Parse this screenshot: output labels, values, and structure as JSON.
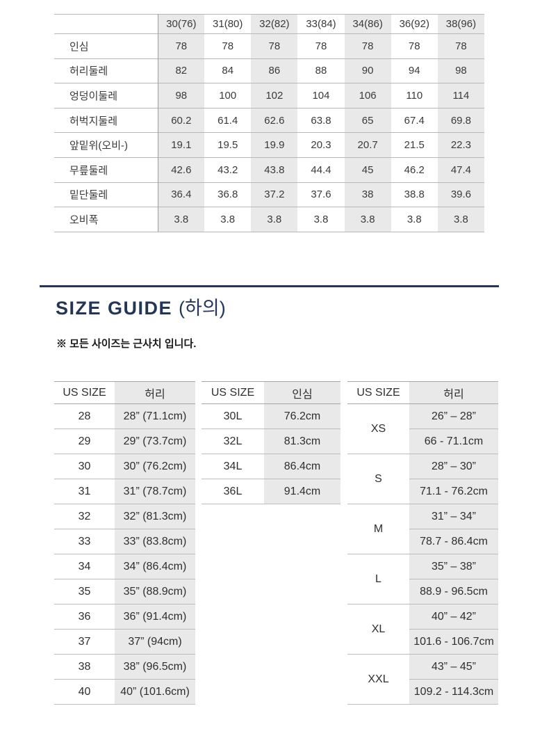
{
  "colors": {
    "accent_navy": "#233655",
    "cell_gray": "#e9e9e9"
  },
  "section": {
    "title_en": "SIZE GUIDE",
    "title_kr": "(하의)",
    "note": "※ 모든 사이즈는 근사치 입니다."
  },
  "spec_table": {
    "columns": [
      "30(76)",
      "31(80)",
      "32(82)",
      "33(84)",
      "34(86)",
      "36(92)",
      "38(96)"
    ],
    "rows": [
      {
        "label": "인심",
        "values": [
          "78",
          "78",
          "78",
          "78",
          "78",
          "78",
          "78"
        ]
      },
      {
        "label": "허리둘레",
        "values": [
          "82",
          "84",
          "86",
          "88",
          "90",
          "94",
          "98"
        ]
      },
      {
        "label": "엉덩이둘레",
        "values": [
          "98",
          "100",
          "102",
          "104",
          "106",
          "110",
          "114"
        ]
      },
      {
        "label": "허벅지둘레",
        "values": [
          "60.2",
          "61.4",
          "62.6",
          "63.8",
          "65",
          "67.4",
          "69.8"
        ]
      },
      {
        "label": "앞밑위(오비-)",
        "values": [
          "19.1",
          "19.5",
          "19.9",
          "20.3",
          "20.7",
          "21.5",
          "22.3"
        ]
      },
      {
        "label": "무릎둘레",
        "values": [
          "42.6",
          "43.2",
          "43.8",
          "44.4",
          "45",
          "46.2",
          "47.4"
        ]
      },
      {
        "label": "밑단둘레",
        "values": [
          "36.4",
          "36.8",
          "37.2",
          "37.6",
          "38",
          "38.8",
          "39.6"
        ]
      },
      {
        "label": "오비폭",
        "values": [
          "3.8",
          "3.8",
          "3.8",
          "3.8",
          "3.8",
          "3.8",
          "3.8"
        ]
      }
    ]
  },
  "waist_table": {
    "headers": [
      "US SIZE",
      "허리"
    ],
    "rows": [
      [
        "28",
        "28” (71.1cm)"
      ],
      [
        "29",
        "29” (73.7cm)"
      ],
      [
        "30",
        "30” (76.2cm)"
      ],
      [
        "31",
        "31” (78.7cm)"
      ],
      [
        "32",
        "32” (81.3cm)"
      ],
      [
        "33",
        "33” (83.8cm)"
      ],
      [
        "34",
        "34” (86.4cm)"
      ],
      [
        "35",
        "35” (88.9cm)"
      ],
      [
        "36",
        "36” (91.4cm)"
      ],
      [
        "37",
        "37” (94cm)"
      ],
      [
        "38",
        "38” (96.5cm)"
      ],
      [
        "40",
        "40” (101.6cm)"
      ]
    ]
  },
  "inseam_table": {
    "headers": [
      "US SIZE",
      "인심"
    ],
    "rows": [
      [
        "30L",
        "76.2cm"
      ],
      [
        "32L",
        "81.3cm"
      ],
      [
        "34L",
        "86.4cm"
      ],
      [
        "36L",
        "91.4cm"
      ]
    ]
  },
  "letter_table": {
    "headers": [
      "US SIZE",
      "허리"
    ],
    "groups": [
      {
        "size": "XS",
        "inch": "26” – 28”",
        "cm": "66 - 71.1cm"
      },
      {
        "size": "S",
        "inch": "28” – 30”",
        "cm": "71.1 - 76.2cm"
      },
      {
        "size": "M",
        "inch": "31” – 34”",
        "cm": "78.7 - 86.4cm"
      },
      {
        "size": "L",
        "inch": "35” – 38”",
        "cm": "88.9 - 96.5cm"
      },
      {
        "size": "XL",
        "inch": "40” – 42”",
        "cm": "101.6 - 106.7cm"
      },
      {
        "size": "XXL",
        "inch": "43” – 45”",
        "cm": "109.2 - 114.3cm"
      }
    ]
  }
}
